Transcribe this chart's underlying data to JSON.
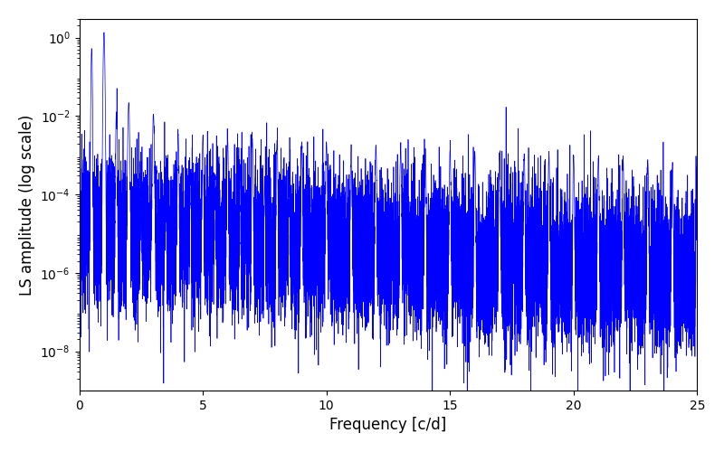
{
  "xlabel": "Frequency [c/d]",
  "ylabel": "LS amplitude (log scale)",
  "line_color": "#0000ff",
  "xlim": [
    0,
    25
  ],
  "ylim": [
    1e-09,
    3.0
  ],
  "yticks": [
    1e-08,
    1e-06,
    0.0001,
    0.01,
    1.0
  ],
  "xticks": [
    0,
    5,
    10,
    15,
    20,
    25
  ],
  "figsize": [
    8.0,
    5.0
  ],
  "dpi": 100,
  "background_color": "#ffffff",
  "seed": 123,
  "n_points": 12000,
  "freq_max": 25.0,
  "linewidth": 0.5
}
